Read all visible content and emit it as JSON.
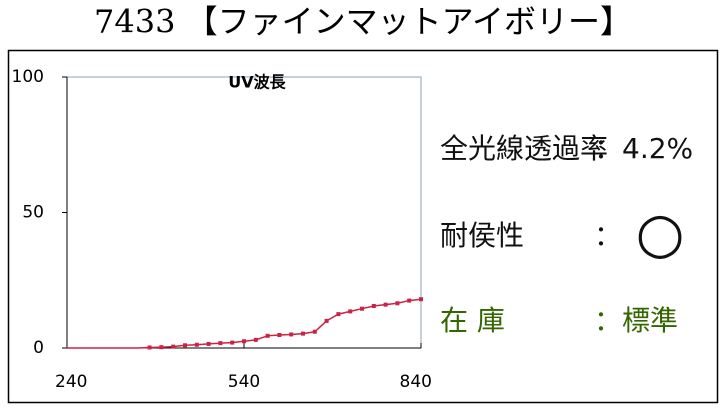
{
  "title": "7433 【ファインマットアイボリー】",
  "chart_data": {
    "type": "line",
    "title": "UV波長",
    "x": [
      240,
      260,
      280,
      300,
      320,
      340,
      360,
      380,
      400,
      420,
      440,
      460,
      480,
      500,
      520,
      540,
      560,
      580,
      600,
      620,
      640,
      660,
      680,
      700,
      720,
      740,
      760,
      780,
      800,
      820,
      840
    ],
    "series": [
      {
        "name": null,
        "color": "#cc2244",
        "values": [
          0,
          0,
          0,
          0,
          0,
          0,
          0,
          0.2,
          0.3,
          0.5,
          1,
          1.2,
          1.5,
          1.8,
          2,
          2.5,
          3,
          4.5,
          4.8,
          5,
          5.3,
          6,
          10,
          12.5,
          13.5,
          14.5,
          15.5,
          16,
          16.5,
          17.5,
          18
        ]
      }
    ],
    "xlim": [
      240,
      840
    ],
    "xticks": [
      240,
      540,
      840
    ],
    "ylim": [
      0,
      100
    ],
    "yticks": [
      0,
      50,
      100
    ],
    "grid": false
  },
  "info": {
    "rows": [
      {
        "label": "全光線透過率",
        "sep": "：",
        "value": "4.2%"
      },
      {
        "label": "耐侯性",
        "sep": "：",
        "value": "○"
      },
      {
        "label": "在 庫",
        "sep": "：",
        "value": "標準"
      }
    ]
  }
}
